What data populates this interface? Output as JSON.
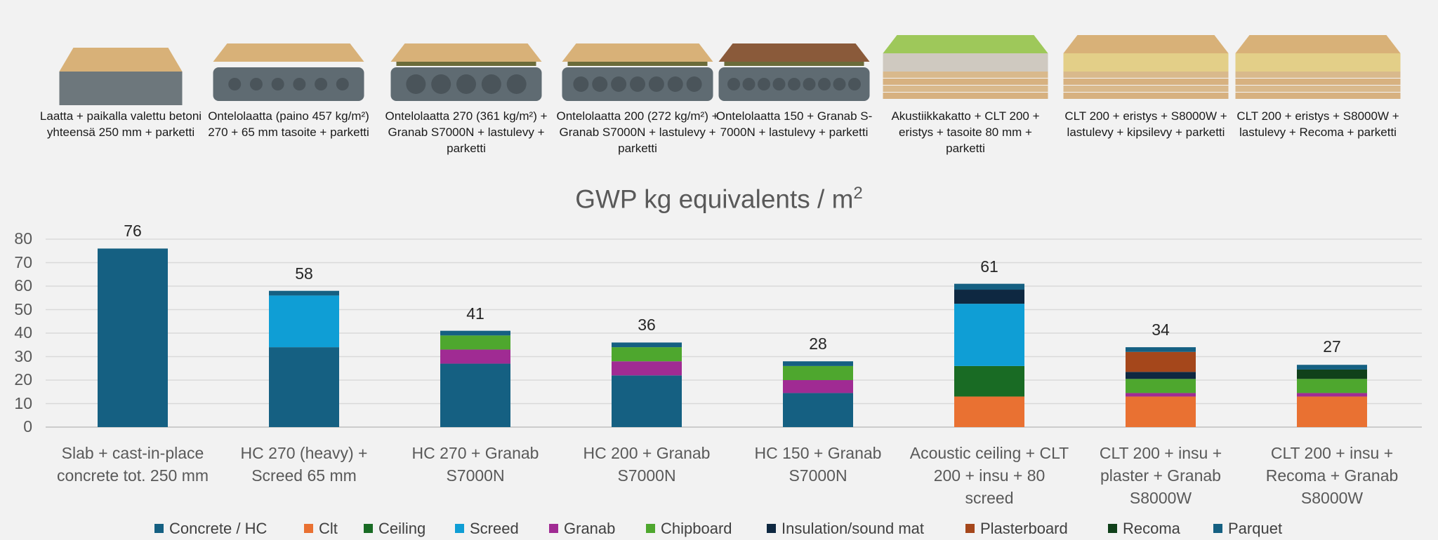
{
  "floors": [
    {
      "caption": "Laatta + paikalla valettu betoni yhteensä 250 mm + parketti",
      "icon": "solid-slab-parquet"
    },
    {
      "caption": "Ontelolaatta (paino 457 kg/m²) 270 + 65 mm tasoite + parketti",
      "icon": "hollow-core-screed"
    },
    {
      "caption": "Ontelolaatta 270 (361 kg/m²) + Granab S7000N + lastulevy + parketti",
      "icon": "hollow-core-270-granab"
    },
    {
      "caption": "Ontelolaatta 200 (272 kg/m²) + Granab S7000N + lastulevy + parketti",
      "icon": "hollow-core-200-granab"
    },
    {
      "caption": "Ontelolaatta 150 + Granab S-7000N + lastulevy + parketti",
      "icon": "hollow-core-150-granab"
    },
    {
      "caption": "Akustiikkakatto + CLT 200 + eristys + tasoite 80 mm + parketti",
      "icon": "clt-acoustic-screed"
    },
    {
      "caption": "CLT 200 + eristys + S8000W + lastulevy + kipsilevy + parketti",
      "icon": "clt-plaster-granab"
    },
    {
      "caption": "CLT 200 + eristys + S8000W + lastulevy + Recoma + parketti",
      "icon": "clt-recoma-granab"
    }
  ],
  "chart_data": {
    "type": "bar",
    "stacked": true,
    "title": "GWP kg equivalents / m",
    "title_superscript": "2",
    "xlabel": "",
    "ylabel": "",
    "ylim": [
      0,
      80
    ],
    "yticks": [
      0,
      10,
      20,
      30,
      40,
      50,
      60,
      70,
      80
    ],
    "grid": true,
    "legend_position": "bottom",
    "categories": [
      "Slab + cast-in-place concrete tot. 250 mm",
      "HC 270 (heavy) + Screed 65 mm",
      "HC 270 + Granab S7000N",
      "HC 200 + Granab S7000N",
      "HC 150 + Granab S7000N",
      "Acoustic ceiling + CLT 200 + insu + 80 screed",
      "CLT 200 + insu + plaster + Granab S8000W",
      "CLT 200 + insu + Recoma + Granab S8000W"
    ],
    "category_lines": [
      [
        "Slab + cast-in-place",
        "concrete tot. 250 mm"
      ],
      [
        "HC 270 (heavy) +",
        "Screed 65 mm"
      ],
      [
        "HC 270 + Granab",
        "S7000N"
      ],
      [
        "HC 200 + Granab",
        "S7000N"
      ],
      [
        "HC 150 + Granab",
        "S7000N"
      ],
      [
        "Acoustic ceiling + CLT",
        "200 + insu + 80",
        "screed"
      ],
      [
        "CLT 200 + insu +",
        "plaster + Granab",
        "S8000W"
      ],
      [
        "CLT 200 + insu +",
        "Recoma + Granab",
        "S8000W"
      ]
    ],
    "totals": [
      76,
      58,
      41,
      36,
      28,
      61,
      34,
      27
    ],
    "series": [
      {
        "name": "Concrete / HC",
        "color": "#156082",
        "values": [
          76,
          34,
          27,
          22,
          14.5,
          0,
          0,
          0
        ]
      },
      {
        "name": "Clt",
        "color": "#e97132",
        "values": [
          0,
          0,
          0,
          0,
          0,
          13,
          13,
          13
        ]
      },
      {
        "name": "Ceiling",
        "color": "#196b24",
        "values": [
          0,
          0,
          0,
          0,
          0,
          13,
          0,
          0
        ]
      },
      {
        "name": "Screed",
        "color": "#0f9ed5",
        "values": [
          0,
          22,
          0,
          0,
          0,
          26.5,
          0,
          0
        ]
      },
      {
        "name": "Granab",
        "color": "#a02b93",
        "values": [
          0,
          0,
          6,
          6,
          5.5,
          0,
          1.5,
          1.5
        ]
      },
      {
        "name": "Chipboard",
        "color": "#4ea72e",
        "values": [
          0,
          0,
          6,
          6,
          6,
          0,
          6,
          6
        ]
      },
      {
        "name": "Insulation/sound mat",
        "color": "#0e2841",
        "values": [
          0,
          0,
          0,
          0,
          0,
          6,
          3,
          0
        ]
      },
      {
        "name": "Plasterboard",
        "color": "#a5471b",
        "values": [
          0,
          0,
          0,
          0,
          0,
          0,
          8.5,
          0
        ]
      },
      {
        "name": "Recoma",
        "color": "#10401a",
        "values": [
          0,
          0,
          0,
          0,
          0,
          0,
          0,
          4
        ]
      },
      {
        "name": "Parquet",
        "color": "#156082",
        "values": [
          0,
          2,
          2,
          2,
          2,
          2.5,
          2,
          2
        ]
      }
    ]
  }
}
